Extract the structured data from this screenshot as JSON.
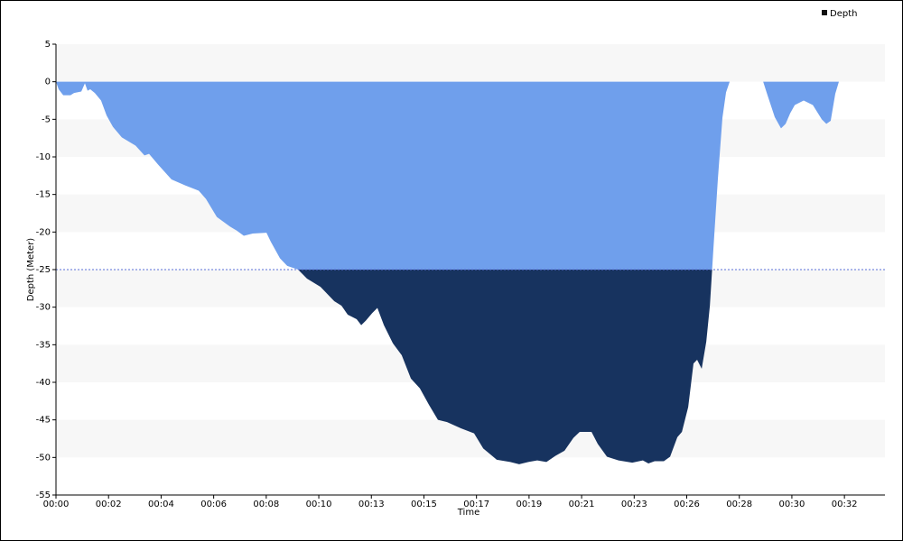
{
  "chart_data": {
    "type": "area",
    "x_label": "Time",
    "y_label": "Depth (Meter)",
    "x": [
      0,
      0.11,
      0.3,
      0.6,
      0.75,
      1.05,
      1.2,
      1.31,
      1.42,
      1.61,
      1.87,
      2.1,
      2.36,
      2.73,
      3.3,
      3.67,
      3.86,
      4.23,
      4.79,
      5.36,
      5.92,
      6.22,
      6.67,
      7.23,
      7.49,
      7.79,
      8.16,
      8.73,
      8.91,
      9.29,
      9.59,
      10.04,
      10.41,
      10.97,
      11.54,
      11.84,
      12.1,
      12.47,
      12.66,
      12.85,
      13.11,
      13.33,
      13.6,
      13.97,
      14.34,
      14.72,
      15.09,
      15.47,
      15.84,
      16.22,
      16.78,
      17.34,
      17.72,
      18.28,
      18.84,
      19.21,
      19.59,
      19.96,
      20.34,
      20.71,
      21.09,
      21.46,
      21.72,
      22.21,
      22.47,
      22.85,
      23.33,
      23.9,
      24.34,
      24.57,
      24.83,
      25.21,
      25.47,
      25.77,
      25.96,
      26.22,
      26.44,
      26.59,
      26.78,
      26.97,
      27.12,
      27.27,
      27.45,
      27.64,
      27.79,
      27.94,
      29.33,
      29.51,
      29.81,
      30.07,
      30.26,
      30.45,
      30.64,
      31.01,
      31.39,
      31.76,
      31.95,
      32.13,
      32.32,
      32.47
    ],
    "series": [
      {
        "name": "Depth",
        "color": "#6f9fec",
        "below_color": "#17335f",
        "legend_color": "#111111",
        "values": [
          0,
          -1,
          -1.8,
          -1.8,
          -1.5,
          -1.3,
          -0.2,
          -1.2,
          -1,
          -1.5,
          -2.5,
          -4.5,
          -6,
          -7.4,
          -8.5,
          -9.8,
          -9.6,
          -11,
          -13,
          -13.8,
          -14.5,
          -15.6,
          -18,
          -19.3,
          -19.8,
          -20.5,
          -20.2,
          -20.1,
          -21.3,
          -23.5,
          -24.5,
          -25,
          -26.2,
          -27.3,
          -29.2,
          -29.8,
          -31,
          -31.6,
          -32.4,
          -31.8,
          -30.8,
          -30.1,
          -32.4,
          -34.8,
          -36.4,
          -39.5,
          -40.8,
          -43,
          -45,
          -45.3,
          -46.1,
          -46.8,
          -48.8,
          -50.3,
          -50.6,
          -50.9,
          -50.6,
          -50.4,
          -50.6,
          -49.8,
          -49.1,
          -47.4,
          -46.6,
          -46.6,
          -48.2,
          -49.9,
          -50.4,
          -50.7,
          -50.4,
          -50.8,
          -50.5,
          -50.5,
          -49.9,
          -47.3,
          -46.6,
          -43.3,
          -37.5,
          -37,
          -38.2,
          -34.6,
          -29.8,
          -22,
          -13,
          -4.8,
          -1.4,
          0,
          0,
          -1.8,
          -4.7,
          -6.2,
          -5.6,
          -4.2,
          -3.1,
          -2.5,
          -3.1,
          -5,
          -5.6,
          -5.2,
          -1.6,
          0
        ]
      }
    ],
    "threshold": -25,
    "threshold_color": "#5a6fd8",
    "xlim": [
      0,
      34.38
    ],
    "ylim": [
      -55,
      5
    ],
    "xticks": [
      {
        "value": 0,
        "label": "00:00"
      },
      {
        "value": 2.18,
        "label": "00:02"
      },
      {
        "value": 4.36,
        "label": "00:04"
      },
      {
        "value": 6.54,
        "label": "00:06"
      },
      {
        "value": 8.72,
        "label": "00:08"
      },
      {
        "value": 10.9,
        "label": "00:10"
      },
      {
        "value": 13.08,
        "label": "00:13"
      },
      {
        "value": 15.26,
        "label": "00:15"
      },
      {
        "value": 17.44,
        "label": "00:17"
      },
      {
        "value": 19.62,
        "label": "00:19"
      },
      {
        "value": 21.8,
        "label": "00:21"
      },
      {
        "value": 23.98,
        "label": "00:23"
      },
      {
        "value": 26.16,
        "label": "00:26"
      },
      {
        "value": 28.34,
        "label": "00:28"
      },
      {
        "value": 30.52,
        "label": "00:30"
      },
      {
        "value": 32.7,
        "label": "00:32"
      }
    ],
    "yticks": [
      5,
      0,
      -5,
      -10,
      -15,
      -20,
      -25,
      -30,
      -35,
      -40,
      -45,
      -50,
      -55
    ],
    "legend": "top-right",
    "grid_bands": true
  }
}
